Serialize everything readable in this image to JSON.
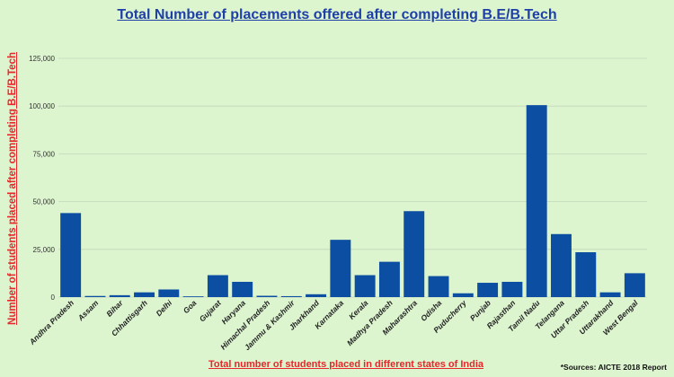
{
  "chart_data": {
    "type": "bar",
    "title": "Total Number of placements offered after completing B.E/B.Tech",
    "ylabel": "Number of students placed after completing B.E/B.Tech",
    "xlabel": "Total number of students placed in different states of India",
    "source": "*Sources: AICTE 2018 Report",
    "ylim": [
      0,
      125000
    ],
    "yticks": [
      0,
      25000,
      50000,
      75000,
      100000,
      125000
    ],
    "ytick_labels": [
      "0",
      "25,000",
      "50,000",
      "75,000",
      "100,000",
      "125,000"
    ],
    "grid": true,
    "bar_color": "#0b4ea2",
    "categories": [
      "Andhra Pradesh",
      "Assam",
      "Bihar",
      "Chhattisgarh",
      "Delhi",
      "Goa",
      "Gujarat",
      "Haryana",
      "Himachal Pradesh",
      "Jammu & Kashmir",
      "Jharkhand",
      "Karnataka",
      "Kerala",
      "Madhya Pradesh",
      "Maharashtra",
      "Odisha",
      "Puducherry",
      "Punjab",
      "Rajasthan",
      "Tamil Nadu",
      "Telangana",
      "Uttar Pradesh",
      "Uttarakhand",
      "West Bengal"
    ],
    "values": [
      44000,
      600,
      1000,
      2500,
      4000,
      400,
      11500,
      8000,
      700,
      500,
      1500,
      30000,
      11500,
      18500,
      45000,
      11000,
      2000,
      7500,
      8000,
      100500,
      33000,
      23500,
      2500,
      12500
    ]
  }
}
